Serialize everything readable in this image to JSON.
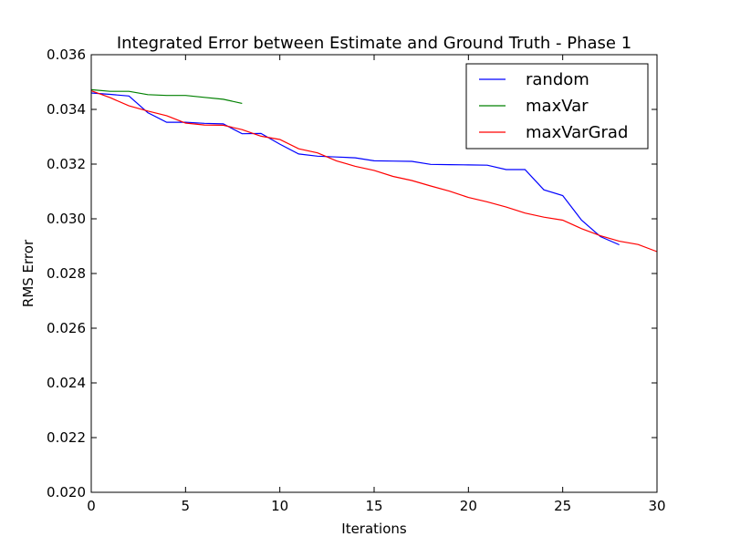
{
  "chart_data": {
    "type": "line",
    "title": "Integrated Error between Estimate and Ground Truth - Phase 1",
    "xlabel": "Iterations",
    "ylabel": "RMS Error",
    "xlim": [
      0,
      30
    ],
    "ylim": [
      0.02,
      0.036
    ],
    "xticks": [
      "0",
      "5",
      "10",
      "15",
      "20",
      "25",
      "30"
    ],
    "yticks": [
      "0.020",
      "0.022",
      "0.024",
      "0.026",
      "0.028",
      "0.030",
      "0.032",
      "0.034",
      "0.036"
    ],
    "grid": false,
    "legend_position": "top-right",
    "series": [
      {
        "name": "random",
        "color": "#0000ff",
        "x": [
          0,
          1,
          2,
          3,
          4,
          5,
          6,
          7,
          8,
          9,
          10,
          11,
          12,
          13,
          14,
          15,
          16,
          17,
          18,
          19,
          20,
          21,
          22,
          23,
          24,
          25,
          26,
          27,
          28
        ],
        "y": [
          0.0346,
          0.03455,
          0.03449,
          0.03388,
          0.03353,
          0.03353,
          0.03349,
          0.03347,
          0.03311,
          0.03312,
          0.03273,
          0.03237,
          0.03229,
          0.03226,
          0.03223,
          0.03212,
          0.03211,
          0.0321,
          0.03199,
          0.03198,
          0.03197,
          0.03196,
          0.0318,
          0.0318,
          0.03106,
          0.03085,
          0.02995,
          0.02935,
          0.02905
        ]
      },
      {
        "name": "maxVar",
        "color": "#008000",
        "x": [
          0,
          1,
          2,
          3,
          4,
          5,
          6,
          7,
          8
        ],
        "y": [
          0.03472,
          0.03466,
          0.03466,
          0.03454,
          0.03451,
          0.03451,
          0.03444,
          0.03437,
          0.03422
        ]
      },
      {
        "name": "maxVarGrad",
        "color": "#ff0000",
        "x": [
          0,
          1,
          2,
          3,
          4,
          5,
          6,
          7,
          8,
          9,
          10,
          11,
          12,
          13,
          14,
          15,
          16,
          17,
          18,
          19,
          20,
          21,
          22,
          23,
          24,
          25,
          26,
          27,
          28,
          29,
          30
        ],
        "y": [
          0.03468,
          0.03443,
          0.03413,
          0.03394,
          0.03377,
          0.0335,
          0.03343,
          0.03342,
          0.03326,
          0.03302,
          0.0329,
          0.03256,
          0.03241,
          0.03212,
          0.03192,
          0.03177,
          0.03155,
          0.0314,
          0.0312,
          0.03101,
          0.03078,
          0.03062,
          0.03043,
          0.03021,
          0.03006,
          0.02995,
          0.02964,
          0.02938,
          0.02918,
          0.02906,
          0.0288
        ]
      }
    ]
  }
}
